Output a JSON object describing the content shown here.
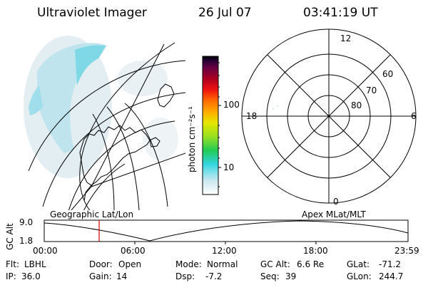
{
  "header": {
    "instrument": "Ultraviolet Imager",
    "date": "26 Jul 07",
    "time": "03:41:19 UT"
  },
  "colorbar": {
    "label": "photon cm⁻²s⁻¹",
    "ticks": [
      "100",
      "10"
    ]
  },
  "polar": {
    "mlt_labels": [
      "12",
      "18",
      "6",
      "0"
    ],
    "lat_labels": [
      "60",
      "70",
      "80"
    ]
  },
  "timeline": {
    "left_label": "Geographic Lat/Lon",
    "right_label": "Apex MLat/MLT",
    "ylabel": "GC Alt",
    "y_ticks": [
      "9.0",
      "1.8"
    ],
    "x_ticks": [
      "00:00",
      "06:00",
      "12:00",
      "18:00",
      "23:59"
    ],
    "current_time": "03:41",
    "marker_color": "#cc0000"
  },
  "footer": {
    "row1": [
      {
        "key": "Flt:",
        "value": "LBHL"
      },
      {
        "key": "Door:",
        "value": "Open"
      },
      {
        "key": "Mode:",
        "value": "Normal"
      },
      {
        "key": "GC Alt:",
        "value": "6.6 Re"
      },
      {
        "key": "GLat:",
        "value": "-71.2"
      }
    ],
    "row2": [
      {
        "key": "IP:",
        "value": "36.0"
      },
      {
        "key": "Gain:",
        "value": "14"
      },
      {
        "key": "Dsp:",
        "value": "-7.2"
      },
      {
        "key": "Seq:",
        "value": "39"
      },
      {
        "key": "GLon:",
        "value": "244.7"
      }
    ]
  },
  "colors": {
    "colorbar": [
      "#ffffff",
      "#cce8f0",
      "#33d6e0",
      "#22cc55",
      "#99e022",
      "#e6e600",
      "#ffaa00",
      "#ff6a00",
      "#ee1111",
      "#aa0022",
      "#660044",
      "#220033",
      "#000000"
    ],
    "aurora": "#33d6e0"
  }
}
